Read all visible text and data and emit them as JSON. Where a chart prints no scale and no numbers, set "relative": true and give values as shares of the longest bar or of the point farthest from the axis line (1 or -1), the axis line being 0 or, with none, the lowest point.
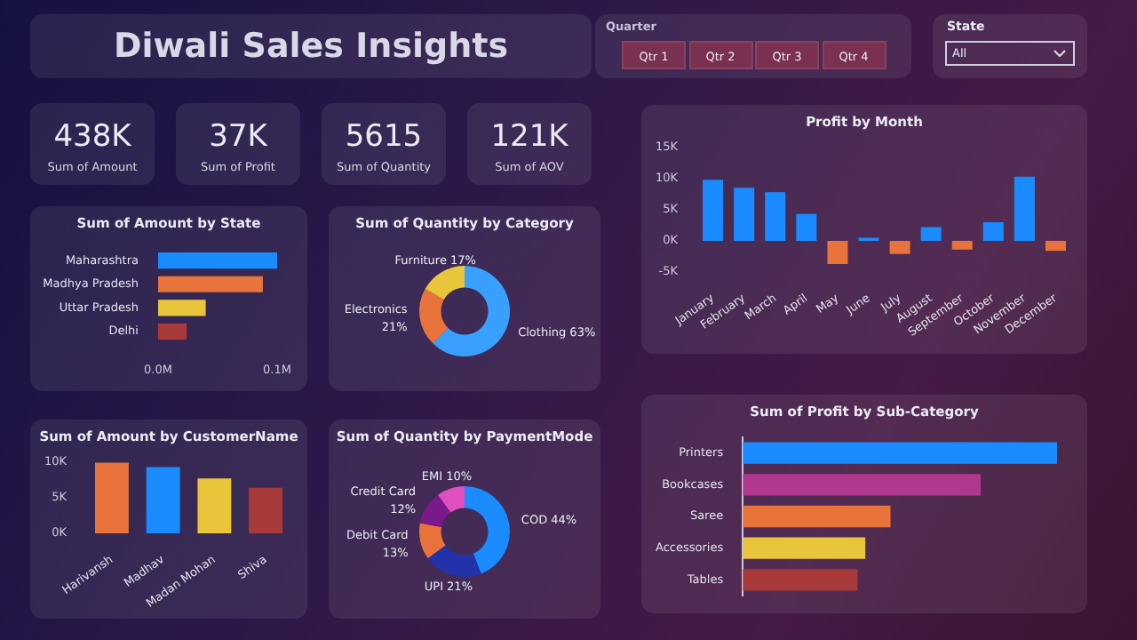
{
  "chart_data": [
    {
      "type": "other",
      "title": "Diwali Sales Insights",
      "annotations": [
        "Quarter",
        "Qtr 1",
        "Qtr 2",
        "Qtr 3",
        "Qtr 4",
        "State",
        "All"
      ]
    },
    {
      "type": "other",
      "annotations": [
        "438K",
        "Sum of Amount",
        "37K",
        "Sum of Profit",
        "5615",
        "Sum of Quantity",
        "121K",
        "Sum of AOV"
      ]
    },
    {
      "type": "bar",
      "title": "Profit by Month",
      "categories": [
        "January",
        "February",
        "March",
        "April",
        "May",
        "June",
        "July",
        "August",
        "September",
        "October",
        "November",
        "December"
      ],
      "values": [
        9800,
        8500,
        7800,
        4300,
        -3700,
        500,
        -2100,
        2200,
        -1400,
        3000,
        10300,
        -1600
      ],
      "colors": [
        "#1a8cff",
        "#1a8cff",
        "#1a8cff",
        "#1a8cff",
        "#e8743b",
        "#1a8cff",
        "#e8743b",
        "#1a8cff",
        "#e8743b",
        "#1a8cff",
        "#1a8cff",
        "#e8743b"
      ],
      "ylim": [
        -5000,
        15000
      ],
      "yticks": [
        {
          "value": -5000,
          "label": "-5K"
        },
        {
          "value": 0,
          "label": "0K"
        },
        {
          "value": 5000,
          "label": "5K"
        },
        {
          "value": 10000,
          "label": "10K"
        },
        {
          "value": 15000,
          "label": "15K"
        }
      ]
    },
    {
      "type": "bar",
      "orientation": "horizontal",
      "title": "Sum of Amount by State",
      "categories": [
        "Maharashtra",
        "Madhya Pradesh",
        "Uttar Pradesh",
        "Delhi"
      ],
      "values": [
        0.1,
        0.088,
        0.04,
        0.024
      ],
      "colors": [
        "#1a8cff",
        "#e8743b",
        "#e8c53a",
        "#a83a3a"
      ],
      "xlim": [
        0,
        0.1
      ],
      "xticks": [
        {
          "value": 0,
          "label": "0.0M"
        },
        {
          "value": 0.1,
          "label": "0.1M"
        }
      ]
    },
    {
      "type": "donut",
      "title": "Sum of Quantity by Category",
      "categories": [
        "Clothing",
        "Electronics",
        "Furniture"
      ],
      "values": [
        63,
        21,
        17
      ],
      "value_labels": [
        "63%",
        "21%",
        "17%"
      ],
      "colors": [
        "#3aa0ff",
        "#e8743b",
        "#e8c53a"
      ]
    },
    {
      "type": "bar",
      "title": "Sum of Amount by CustomerName",
      "categories": [
        "Harivansh",
        "Madhav",
        "Madan Mohan",
        "Shiva"
      ],
      "values": [
        9900,
        9300,
        7700,
        6400
      ],
      "colors": [
        "#e8743b",
        "#1a8cff",
        "#e8c53a",
        "#a83a3a"
      ],
      "ylim": [
        0,
        10000
      ],
      "yticks": [
        {
          "value": 0,
          "label": "0K"
        },
        {
          "value": 5000,
          "label": "5K"
        },
        {
          "value": 10000,
          "label": "10K"
        }
      ]
    },
    {
      "type": "donut",
      "title": "Sum of Quantity by PaymentMode",
      "categories": [
        "COD",
        "UPI",
        "Debit Card",
        "Credit Card",
        "EMI"
      ],
      "values": [
        44,
        21,
        13,
        12,
        10
      ],
      "value_labels": [
        "44%",
        "21%",
        "13%",
        "12%",
        "10%"
      ],
      "colors": [
        "#1a8cff",
        "#2233aa",
        "#e8743b",
        "#7a1a8a",
        "#e04fc0"
      ]
    },
    {
      "type": "bar",
      "orientation": "horizontal",
      "relative": true,
      "title": "Sum of Profit by Sub-Category",
      "categories": [
        "Printers",
        "Bookcases",
        "Saree",
        "Accessories",
        "Tables"
      ],
      "values": [
        1,
        0.757,
        0.47,
        0.39,
        0.365
      ],
      "colors": [
        "#1a8cff",
        "#b0388f",
        "#e8743b",
        "#e8c53a",
        "#a83a3a"
      ]
    }
  ]
}
